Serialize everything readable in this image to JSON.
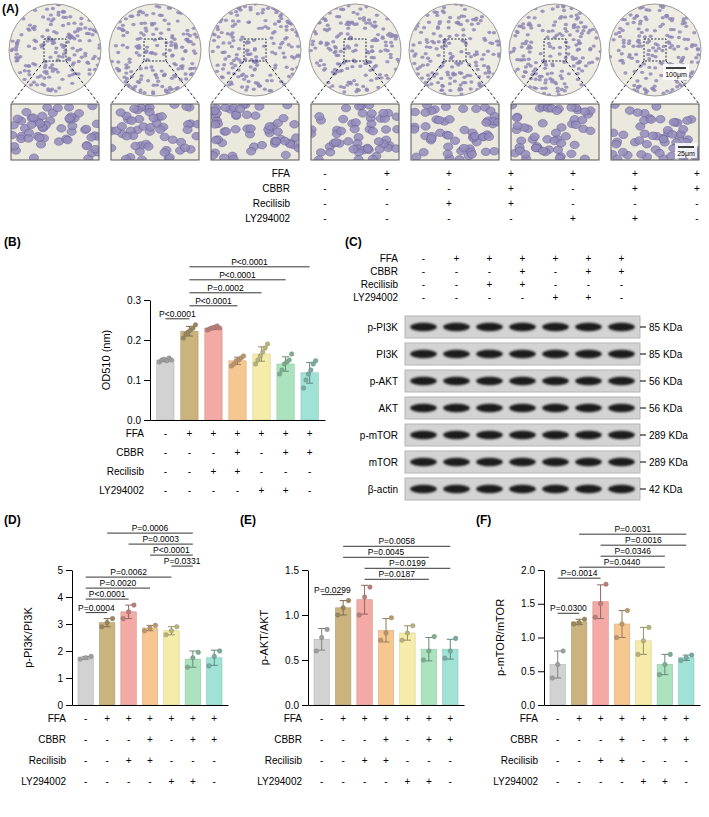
{
  "panel_a": {
    "label": "(A)",
    "scale_bars": [
      "100μm",
      "25μm"
    ],
    "treatments": [
      {
        "name": "FFA",
        "signs": [
          "-",
          "+",
          "+",
          "+",
          "+",
          "+",
          "+"
        ]
      },
      {
        "name": "CBBR",
        "signs": [
          "-",
          "-",
          "-",
          "+",
          "-",
          "+",
          "+"
        ]
      },
      {
        "name": "Recilisib",
        "signs": [
          "-",
          "-",
          "+",
          "+",
          "-",
          "-",
          "-"
        ]
      },
      {
        "name": "LY294002",
        "signs": [
          "-",
          "-",
          "-",
          "-",
          "+",
          "+",
          "-"
        ]
      }
    ]
  },
  "panel_c": {
    "label": "(C)",
    "treatments": [
      {
        "name": "FFA",
        "signs": [
          "-",
          "+",
          "+",
          "+",
          "+",
          "+",
          "+"
        ]
      },
      {
        "name": "CBBR",
        "signs": [
          "-",
          "-",
          "-",
          "+",
          "-",
          "+",
          "+"
        ]
      },
      {
        "name": "Recilisib",
        "signs": [
          "-",
          "-",
          "+",
          "+",
          "-",
          "-",
          "-"
        ]
      },
      {
        "name": "LY294002",
        "signs": [
          "-",
          "-",
          "-",
          "-",
          "+",
          "+",
          "-"
        ]
      }
    ],
    "blots": [
      {
        "name": "p-PI3K",
        "size": "85 KDa"
      },
      {
        "name": "PI3K",
        "size": "85 KDa"
      },
      {
        "name": "p-AKT",
        "size": "56 KDa"
      },
      {
        "name": "AKT",
        "size": "56 KDa"
      },
      {
        "name": "p-mTOR",
        "size": "289 KDa"
      },
      {
        "name": "mTOR",
        "size": "289 KDa"
      },
      {
        "name": "β-actin",
        "size": "42 KDa"
      }
    ]
  },
  "chart_data": [
    {
      "type": "bar",
      "panel_label": "(B)",
      "y_label": "OD510 (nm)",
      "tick_labels": "y",
      "categories": [
        null,
        null,
        null,
        null,
        null,
        null,
        null
      ],
      "values": [
        0.15,
        0.222,
        0.23,
        0.148,
        0.165,
        0.14,
        0.118
      ],
      "errors": [
        0.004,
        0.012,
        0.004,
        0.009,
        0.018,
        0.018,
        0.026
      ],
      "points": [
        [
          0.145,
          0.15,
          0.152,
          0.148,
          0.155,
          0.15
        ],
        [
          0.205,
          0.215,
          0.22,
          0.225,
          0.23,
          0.238
        ],
        [
          0.225,
          0.228,
          0.23,
          0.232,
          0.235,
          0.23
        ],
        [
          0.135,
          0.14,
          0.148,
          0.15,
          0.155,
          0.16
        ],
        [
          0.14,
          0.15,
          0.16,
          0.17,
          0.18,
          0.19
        ],
        [
          0.115,
          0.125,
          0.14,
          0.145,
          0.15,
          0.165
        ],
        [
          0.08,
          0.1,
          0.115,
          0.125,
          0.14,
          0.148
        ]
      ],
      "colors": [
        "#d2d2d2",
        "#cbb37e",
        "#f3a9a4",
        "#f7c791",
        "#f4eca8",
        "#abe3bf",
        "#a0e2d6"
      ],
      "ylim": [
        0,
        0.3
      ],
      "yticks": [
        {
          "value": 0,
          "label": "0.0"
        },
        0.1,
        0.2,
        0.3
      ],
      "comparisons": [
        {
          "from": 0,
          "to": 1,
          "label": "P<0.0001"
        },
        {
          "from": 1,
          "to": 3,
          "label": "P<0.0001"
        },
        {
          "from": 1,
          "to": 4,
          "label": "P=0.0002"
        },
        {
          "from": 1,
          "to": 5,
          "label": "P<0.0001"
        },
        {
          "from": 1,
          "to": 6,
          "label": "P<0.0001"
        }
      ],
      "treatments": [
        {
          "name": "FFA",
          "signs": [
            "-",
            "+",
            "+",
            "+",
            "+",
            "+",
            "+"
          ]
        },
        {
          "name": "CBBR",
          "signs": [
            "-",
            "-",
            "-",
            "+",
            "-",
            "+",
            "+"
          ]
        },
        {
          "name": "Recilisib",
          "signs": [
            "-",
            "-",
            "+",
            "+",
            "-",
            "-",
            "-"
          ]
        },
        {
          "name": "LY294002",
          "signs": [
            "-",
            "-",
            "-",
            "-",
            "+",
            "+",
            "-"
          ]
        }
      ]
    },
    {
      "type": "bar",
      "panel_label": "(D)",
      "y_label": "p-PI3K/PI3K",
      "tick_labels": "y",
      "categories": [
        null,
        null,
        null,
        null,
        null,
        null,
        null
      ],
      "values": [
        1.75,
        3.05,
        3.45,
        2.85,
        2.75,
        1.7,
        1.75
      ],
      "errors": [
        0.05,
        0.15,
        0.25,
        0.1,
        0.15,
        0.3,
        0.28
      ],
      "points": [
        [
          1.7,
          1.75,
          1.8
        ],
        [
          2.9,
          3.05,
          3.2
        ],
        [
          3.2,
          3.45,
          3.7
        ],
        [
          2.75,
          2.85,
          2.95
        ],
        [
          2.6,
          2.75,
          2.9
        ],
        [
          1.4,
          1.75,
          1.95
        ],
        [
          1.45,
          1.8,
          2.0
        ]
      ],
      "colors": [
        "#d2d2d2",
        "#cbb37e",
        "#f3a9a4",
        "#f7c791",
        "#f4eca8",
        "#abe3bf",
        "#a0e2d6"
      ],
      "ylim": [
        0,
        5
      ],
      "yticks": [
        0,
        1,
        2,
        3,
        4,
        5
      ],
      "comparisons": [
        {
          "from": 0,
          "to": 1,
          "label": "P=0.0004"
        },
        {
          "from": 0,
          "to": 2,
          "label": "P<0.0001"
        },
        {
          "from": 0,
          "to": 3,
          "label": "P=0.0020"
        },
        {
          "from": 0,
          "to": 4,
          "label": "P=0.0062"
        },
        {
          "from": 4,
          "to": 5,
          "label": "P=0.0331"
        },
        {
          "from": 3,
          "to": 5,
          "label": "P<0.0001"
        },
        {
          "from": 2,
          "to": 5,
          "label": "P=0.0003"
        },
        {
          "from": 1,
          "to": 5,
          "label": "P=0.0006"
        }
      ],
      "treatments": [
        {
          "name": "FFA",
          "signs": [
            "-",
            "+",
            "+",
            "+",
            "+",
            "+",
            "+"
          ]
        },
        {
          "name": "CBBR",
          "signs": [
            "-",
            "-",
            "-",
            "+",
            "-",
            "+",
            "+"
          ]
        },
        {
          "name": "Recilisib",
          "signs": [
            "-",
            "-",
            "+",
            "+",
            "-",
            "-",
            "-"
          ]
        },
        {
          "name": "LY294002",
          "signs": [
            "-",
            "-",
            "-",
            "-",
            "+",
            "+",
            "-"
          ]
        }
      ]
    },
    {
      "type": "bar",
      "panel_label": "(E)",
      "y_label": "p-AKT/AKT",
      "tick_labels": "y",
      "categories": [
        null,
        null,
        null,
        null,
        null,
        null,
        null
      ],
      "values": [
        0.73,
        1.08,
        1.17,
        0.83,
        0.8,
        0.62,
        0.62
      ],
      "errors": [
        0.12,
        0.08,
        0.16,
        0.13,
        0.08,
        0.13,
        0.11
      ],
      "points": [
        [
          0.6,
          0.75,
          0.84
        ],
        [
          1.0,
          1.08,
          1.16
        ],
        [
          1.0,
          1.2,
          1.31
        ],
        [
          0.72,
          0.8,
          0.97
        ],
        [
          0.72,
          0.8,
          0.88
        ],
        [
          0.5,
          0.6,
          0.76
        ],
        [
          0.52,
          0.6,
          0.74
        ]
      ],
      "colors": [
        "#d2d2d2",
        "#cbb37e",
        "#f3a9a4",
        "#f7c791",
        "#f4eca8",
        "#abe3bf",
        "#a0e2d6"
      ],
      "ylim": [
        0,
        1.5
      ],
      "yticks": [
        {
          "value": 0,
          "label": "0.0"
        },
        0.5,
        {
          "value": 1,
          "label": "1.0"
        },
        1.5
      ],
      "comparisons": [
        {
          "from": 0,
          "to": 1,
          "label": "P=0.0299"
        },
        {
          "from": 2,
          "to": 5,
          "label": "P=0.0187"
        },
        {
          "from": 2,
          "to": 6,
          "label": "P=0.0199"
        },
        {
          "from": 1,
          "to": 5,
          "label": "P=0.0045"
        },
        {
          "from": 1,
          "to": 6,
          "label": "P=0.0058"
        }
      ],
      "treatments": [
        {
          "name": "FFA",
          "signs": [
            "-",
            "+",
            "+",
            "+",
            "+",
            "+",
            "+"
          ]
        },
        {
          "name": "CBBR",
          "signs": [
            "-",
            "-",
            "-",
            "+",
            "-",
            "+",
            "+"
          ]
        },
        {
          "name": "Recilisib",
          "signs": [
            "-",
            "-",
            "+",
            "+",
            "-",
            "-",
            "-"
          ]
        },
        {
          "name": "LY294002",
          "signs": [
            "-",
            "-",
            "-",
            "-",
            "+",
            "+",
            "-"
          ]
        }
      ]
    },
    {
      "type": "bar",
      "panel_label": "(F)",
      "y_label": "p-mTOR/mTOR",
      "tick_labels": "y",
      "categories": [
        null,
        null,
        null,
        null,
        null,
        null,
        null
      ],
      "values": [
        0.6,
        1.23,
        1.53,
        1.2,
        0.95,
        0.6,
        0.7
      ],
      "errors": [
        0.2,
        0.04,
        0.25,
        0.2,
        0.2,
        0.15,
        0.04
      ],
      "points": [
        [
          0.4,
          0.6,
          0.8
        ],
        [
          1.2,
          1.22,
          1.27
        ],
        [
          1.3,
          1.5,
          1.79
        ],
        [
          1.0,
          1.2,
          1.4
        ],
        [
          0.75,
          0.95,
          1.15
        ],
        [
          0.45,
          0.6,
          0.75
        ],
        [
          0.66,
          0.7,
          0.74
        ]
      ],
      "colors": [
        "#d2d2d2",
        "#cbb37e",
        "#f3a9a4",
        "#f7c791",
        "#f4eca8",
        "#abe3bf",
        "#a0e2d6"
      ],
      "ylim": [
        0,
        2
      ],
      "yticks": [
        {
          "value": 0,
          "label": "0.0"
        },
        0.5,
        {
          "value": 1,
          "label": "1.0"
        },
        1.5,
        {
          "value": 2,
          "label": "2.0"
        }
      ],
      "comparisons": [
        {
          "from": 0,
          "to": 1,
          "label": "P=0.0300"
        },
        {
          "from": 0,
          "to": 2,
          "label": "P=0.0014"
        },
        {
          "from": 1,
          "to": 5,
          "label": "P=0.0440"
        },
        {
          "from": 2,
          "to": 5,
          "label": "P=0.0346"
        },
        {
          "from": 2,
          "to": 6,
          "label": "P=0.0016"
        },
        {
          "from": 1,
          "to": 6,
          "label": "P=0.0031"
        }
      ],
      "treatments": [
        {
          "name": "FFA",
          "signs": [
            "-",
            "+",
            "+",
            "+",
            "+",
            "+",
            "+"
          ]
        },
        {
          "name": "CBBR",
          "signs": [
            "-",
            "-",
            "-",
            "+",
            "-",
            "+",
            "+"
          ]
        },
        {
          "name": "Recilisib",
          "signs": [
            "-",
            "-",
            "+",
            "+",
            "-",
            "-",
            "-"
          ]
        },
        {
          "name": "LY294002",
          "signs": [
            "-",
            "-",
            "-",
            "-",
            "+",
            "+",
            "-"
          ]
        }
      ]
    }
  ]
}
